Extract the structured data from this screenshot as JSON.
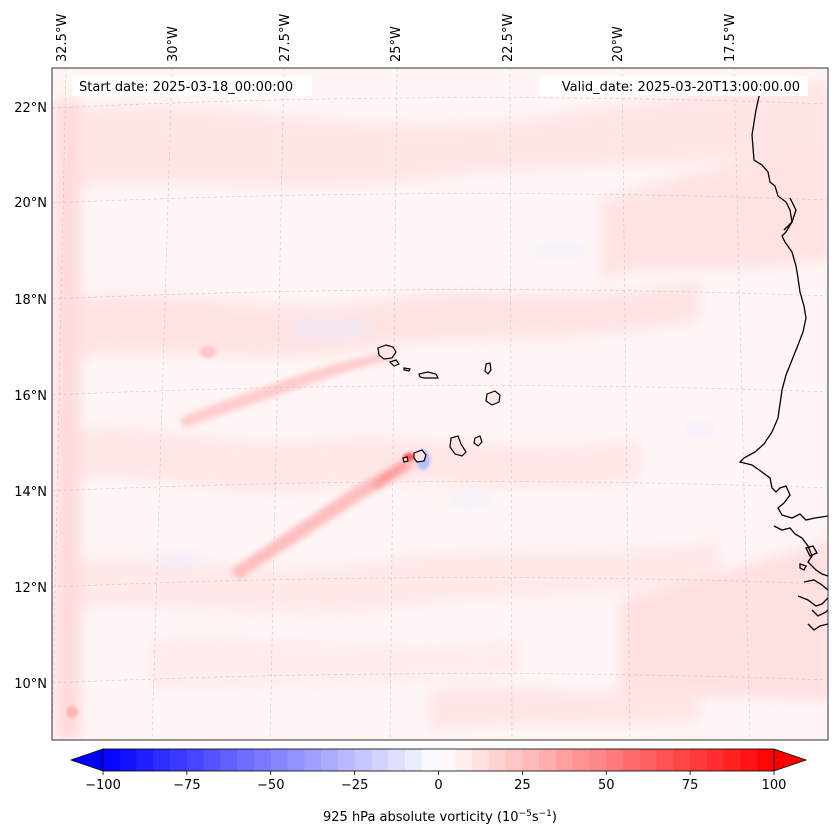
{
  "header": {
    "start_date": "Start date: 2025-03-18_00:00:00",
    "valid_date": "Valid_date: 2025-03-20T13:00:00.00"
  },
  "map": {
    "lon_labels": [
      "32.5°W",
      "30°W",
      "27.5°W",
      "25°W",
      "22.5°W",
      "20°W",
      "17.5°W"
    ],
    "lat_labels": [
      "22°N",
      "20°N",
      "18°N",
      "16°N",
      "14°N",
      "12°N",
      "10°N"
    ],
    "field": "925 hPa absolute vorticity",
    "colors": {
      "positive": "#ff0000",
      "negative": "#0000ff",
      "neutral": "#ffffff",
      "coast": "#000000",
      "grid": "#c0c0c0"
    }
  },
  "colorbar": {
    "ticks": [
      "−100",
      "−75",
      "−50",
      "−25",
      "0",
      "25",
      "50",
      "75",
      "100"
    ],
    "label": "925 hPa absolute vorticity (10",
    "label_exp1": "−5",
    "label_mid": "s",
    "label_exp2": "−1",
    "label_end": ")",
    "range": [
      -100,
      100
    ]
  }
}
